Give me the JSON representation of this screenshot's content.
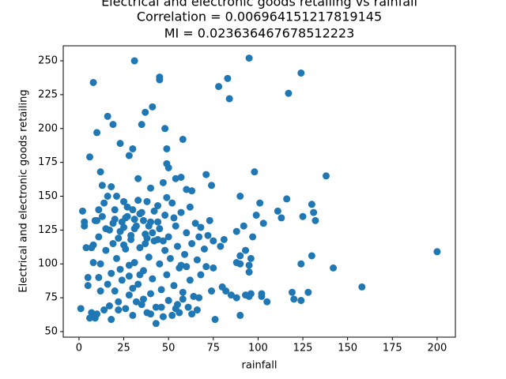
{
  "chart_data": {
    "type": "scatter",
    "title": [
      "Electrical and electronic goods retailing vs rainfall",
      "Correlation = 0.006964151217819145",
      "MI = 0.023636467678512223"
    ],
    "x_label": "rainfall",
    "y_label": "Electrical and electronic goods retailing",
    "color": "#1f77b4",
    "x": [
      31,
      95,
      8,
      124,
      45,
      45,
      83,
      78,
      117,
      84,
      41,
      37,
      16,
      19,
      35,
      48,
      10,
      23,
      58,
      30,
      49,
      28,
      6,
      49,
      50,
      12,
      98,
      71,
      57,
      138,
      33,
      54,
      47,
      74,
      13,
      18,
      40,
      63,
      60,
      101,
      90,
      116,
      130,
      99,
      111,
      113,
      125,
      131,
      132,
      103,
      92,
      88,
      97,
      81,
      75,
      79,
      93,
      90,
      96,
      95,
      95,
      90,
      88,
      130,
      124,
      142,
      200,
      158,
      119,
      120,
      124,
      128,
      105,
      102,
      102,
      96,
      93,
      95,
      88,
      85,
      82,
      80,
      74,
      76,
      90,
      67,
      68,
      71,
      75,
      60,
      2,
      3,
      4,
      5,
      5,
      6,
      7,
      8,
      8,
      9,
      10,
      10,
      11,
      11,
      12,
      13,
      14,
      15,
      15,
      16,
      17,
      18,
      18,
      19,
      20,
      20,
      21,
      22,
      22,
      23,
      24,
      25,
      25,
      26,
      26,
      27,
      28,
      28,
      29,
      30,
      30,
      31,
      32,
      32,
      33,
      34,
      35,
      35,
      36,
      37,
      38,
      38,
      39,
      40,
      40,
      41,
      42,
      43,
      43,
      44,
      45,
      45,
      46,
      47,
      48,
      48,
      49,
      50,
      50,
      51,
      52,
      53,
      54,
      54,
      55,
      56,
      56,
      57,
      58,
      59,
      60,
      61,
      62,
      62,
      63,
      64,
      65,
      66,
      67,
      68,
      70,
      72,
      73,
      1,
      3,
      14,
      21,
      27,
      33,
      36,
      42,
      17,
      23,
      29,
      24,
      26,
      20,
      19,
      31,
      34,
      37,
      39,
      41,
      44,
      47,
      49,
      12,
      7,
      9,
      16,
      22,
      28,
      30,
      34,
      36,
      40,
      46,
      52,
      55,
      58,
      63,
      66,
      11,
      25,
      31,
      38,
      44,
      53,
      57
    ],
    "values": [
      250,
      252,
      234,
      241,
      238,
      236,
      237,
      231,
      226,
      222,
      216,
      212,
      209,
      203,
      203,
      200,
      197,
      189,
      192,
      185,
      185,
      180,
      179,
      174,
      171,
      168,
      168,
      166,
      164,
      165,
      163,
      163,
      160,
      158,
      158,
      157,
      156,
      154,
      155,
      145,
      150,
      148,
      144,
      136,
      139,
      134,
      135,
      138,
      132,
      130,
      128,
      124,
      120,
      118,
      117,
      113,
      110,
      106,
      104,
      99,
      94,
      100,
      101,
      106,
      100,
      97,
      109,
      83,
      79,
      74,
      73,
      79,
      72,
      78,
      76,
      78,
      77,
      76,
      75,
      77,
      80,
      83,
      80,
      59,
      62,
      75,
      92,
      98,
      97,
      98,
      139,
      131,
      112,
      84,
      90,
      60,
      64,
      101,
      114,
      60,
      63,
      132,
      90,
      120,
      80,
      135,
      66,
      110,
      126,
      150,
      69,
      59,
      93,
      130,
      80,
      140,
      104,
      72,
      119,
      96,
      88,
      146,
      127,
      67,
      111,
      135,
      91,
      77,
      118,
      140,
      62,
      101,
      128,
      72,
      85,
      112,
      138,
      70,
      95,
      122,
      64,
      146,
      105,
      78,
      131,
      89,
      117,
      56,
      68,
      143,
      100,
      126,
      81,
      61,
      110,
      136,
      92,
      73,
      120,
      104,
      145,
      84,
      67,
      128,
      113,
      64,
      97,
      138,
      74,
      107,
      123,
      68,
      88,
      142,
      115,
      76,
      130,
      103,
      120,
      127,
      111,
      121,
      132,
      67,
      128,
      145,
      150,
      142,
      147,
      132,
      139,
      125,
      124,
      121,
      131,
      134,
      133,
      115,
      126,
      137,
      115,
      128,
      123,
      131,
      117,
      149,
      100,
      112,
      132,
      85,
      66,
      99,
      82,
      92,
      74,
      63,
      68,
      62,
      70,
      79,
      63,
      66,
      140,
      114,
      133,
      119,
      118,
      134,
      99
    ],
    "xlim": [
      -8.8,
      210.2
    ],
    "ylim": [
      45.9,
      261.1
    ],
    "xticks": [
      0,
      25,
      50,
      75,
      100,
      125,
      150,
      175,
      200
    ],
    "yticks": [
      50,
      75,
      100,
      125,
      150,
      175,
      200,
      225,
      250
    ]
  }
}
